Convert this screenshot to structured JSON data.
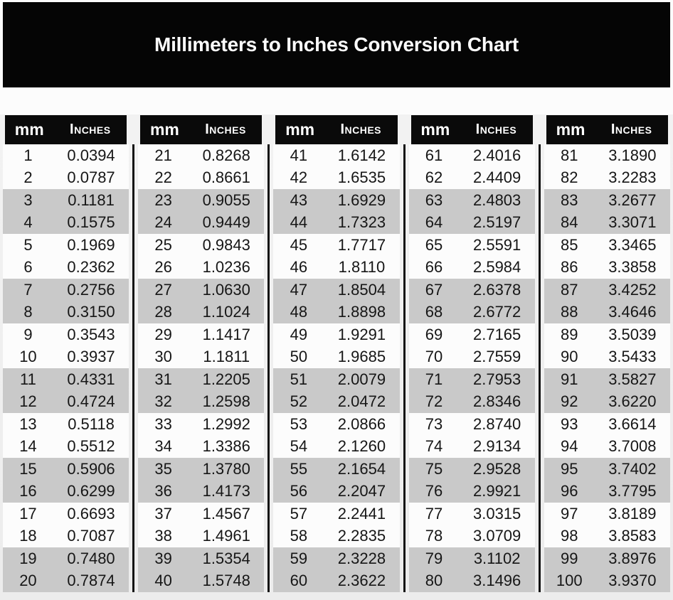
{
  "title": "Millimeters to Inches Conversion Chart",
  "colors": {
    "banner_bg": "#050505",
    "header_bg": "#0a0a0a",
    "header_text": "#ffffff",
    "row_bg": "#fcfcfc",
    "row_alt_bg": "#c9c9c9",
    "divider": "#141414",
    "text": "#161616",
    "page_bg": "#f2f2f2"
  },
  "chart_data": {
    "type": "table",
    "title": "Millimeters to Inches Conversion Chart",
    "column_headers": {
      "mm": "mm",
      "inches": "Inches"
    },
    "layout": {
      "column_groups": 5,
      "rows_per_group": 20,
      "striping": "rows shaded gray in alternating pairs (3-4, 7-8, 11-12, 15-16, 19-20 of each group)"
    },
    "groups": [
      {
        "rows": [
          {
            "mm": "1",
            "in": "0.0394"
          },
          {
            "mm": "2",
            "in": "0.0787"
          },
          {
            "mm": "3",
            "in": "0.1181"
          },
          {
            "mm": "4",
            "in": "0.1575"
          },
          {
            "mm": "5",
            "in": "0.1969"
          },
          {
            "mm": "6",
            "in": "0.2362"
          },
          {
            "mm": "7",
            "in": "0.2756"
          },
          {
            "mm": "8",
            "in": "0.3150"
          },
          {
            "mm": "9",
            "in": "0.3543"
          },
          {
            "mm": "10",
            "in": "0.3937"
          },
          {
            "mm": "11",
            "in": "0.4331"
          },
          {
            "mm": "12",
            "in": "0.4724"
          },
          {
            "mm": "13",
            "in": "0.5118"
          },
          {
            "mm": "14",
            "in": "0.5512"
          },
          {
            "mm": "15",
            "in": "0.5906"
          },
          {
            "mm": "16",
            "in": "0.6299"
          },
          {
            "mm": "17",
            "in": "0.6693"
          },
          {
            "mm": "18",
            "in": "0.7087"
          },
          {
            "mm": "19",
            "in": "0.7480"
          },
          {
            "mm": "20",
            "in": "0.7874"
          }
        ]
      },
      {
        "rows": [
          {
            "mm": "21",
            "in": "0.8268"
          },
          {
            "mm": "22",
            "in": "0.8661"
          },
          {
            "mm": "23",
            "in": "0.9055"
          },
          {
            "mm": "24",
            "in": "0.9449"
          },
          {
            "mm": "25",
            "in": "0.9843"
          },
          {
            "mm": "26",
            "in": "1.0236"
          },
          {
            "mm": "27",
            "in": "1.0630"
          },
          {
            "mm": "28",
            "in": "1.1024"
          },
          {
            "mm": "29",
            "in": "1.1417"
          },
          {
            "mm": "30",
            "in": "1.1811"
          },
          {
            "mm": "31",
            "in": "1.2205"
          },
          {
            "mm": "32",
            "in": "1.2598"
          },
          {
            "mm": "33",
            "in": "1.2992"
          },
          {
            "mm": "34",
            "in": "1.3386"
          },
          {
            "mm": "35",
            "in": "1.3780"
          },
          {
            "mm": "36",
            "in": "1.4173"
          },
          {
            "mm": "37",
            "in": "1.4567"
          },
          {
            "mm": "38",
            "in": "1.4961"
          },
          {
            "mm": "39",
            "in": "1.5354"
          },
          {
            "mm": "40",
            "in": "1.5748"
          }
        ]
      },
      {
        "rows": [
          {
            "mm": "41",
            "in": "1.6142"
          },
          {
            "mm": "42",
            "in": "1.6535"
          },
          {
            "mm": "43",
            "in": "1.6929"
          },
          {
            "mm": "44",
            "in": "1.7323"
          },
          {
            "mm": "45",
            "in": "1.7717"
          },
          {
            "mm": "46",
            "in": "1.8110"
          },
          {
            "mm": "47",
            "in": "1.8504"
          },
          {
            "mm": "48",
            "in": "1.8898"
          },
          {
            "mm": "49",
            "in": "1.9291"
          },
          {
            "mm": "50",
            "in": "1.9685"
          },
          {
            "mm": "51",
            "in": "2.0079"
          },
          {
            "mm": "52",
            "in": "2.0472"
          },
          {
            "mm": "53",
            "in": "2.0866"
          },
          {
            "mm": "54",
            "in": "2.1260"
          },
          {
            "mm": "55",
            "in": "2.1654"
          },
          {
            "mm": "56",
            "in": "2.2047"
          },
          {
            "mm": "57",
            "in": "2.2441"
          },
          {
            "mm": "58",
            "in": "2.2835"
          },
          {
            "mm": "59",
            "in": "2.3228"
          },
          {
            "mm": "60",
            "in": "2.3622"
          }
        ]
      },
      {
        "rows": [
          {
            "mm": "61",
            "in": "2.4016"
          },
          {
            "mm": "62",
            "in": "2.4409"
          },
          {
            "mm": "63",
            "in": "2.4803"
          },
          {
            "mm": "64",
            "in": "2.5197"
          },
          {
            "mm": "65",
            "in": "2.5591"
          },
          {
            "mm": "66",
            "in": "2.5984"
          },
          {
            "mm": "67",
            "in": "2.6378"
          },
          {
            "mm": "68",
            "in": "2.6772"
          },
          {
            "mm": "69",
            "in": "2.7165"
          },
          {
            "mm": "70",
            "in": "2.7559"
          },
          {
            "mm": "71",
            "in": "2.7953"
          },
          {
            "mm": "72",
            "in": "2.8346"
          },
          {
            "mm": "73",
            "in": "2.8740"
          },
          {
            "mm": "74",
            "in": "2.9134"
          },
          {
            "mm": "75",
            "in": "2.9528"
          },
          {
            "mm": "76",
            "in": "2.9921"
          },
          {
            "mm": "77",
            "in": "3.0315"
          },
          {
            "mm": "78",
            "in": "3.0709"
          },
          {
            "mm": "79",
            "in": "3.1102"
          },
          {
            "mm": "80",
            "in": "3.1496"
          }
        ]
      },
      {
        "rows": [
          {
            "mm": "81",
            "in": "3.1890"
          },
          {
            "mm": "82",
            "in": "3.2283"
          },
          {
            "mm": "83",
            "in": "3.2677"
          },
          {
            "mm": "84",
            "in": "3.3071"
          },
          {
            "mm": "85",
            "in": "3.3465"
          },
          {
            "mm": "86",
            "in": "3.3858"
          },
          {
            "mm": "87",
            "in": "3.4252"
          },
          {
            "mm": "88",
            "in": "3.4646"
          },
          {
            "mm": "89",
            "in": "3.5039"
          },
          {
            "mm": "90",
            "in": "3.5433"
          },
          {
            "mm": "91",
            "in": "3.5827"
          },
          {
            "mm": "92",
            "in": "3.6220"
          },
          {
            "mm": "93",
            "in": "3.6614"
          },
          {
            "mm": "94",
            "in": "3.7008"
          },
          {
            "mm": "95",
            "in": "3.7402"
          },
          {
            "mm": "96",
            "in": "3.7795"
          },
          {
            "mm": "97",
            "in": "3.8189"
          },
          {
            "mm": "98",
            "in": "3.8583"
          },
          {
            "mm": "99",
            "in": "3.8976"
          },
          {
            "mm": "100",
            "in": "3.9370"
          }
        ]
      }
    ]
  }
}
